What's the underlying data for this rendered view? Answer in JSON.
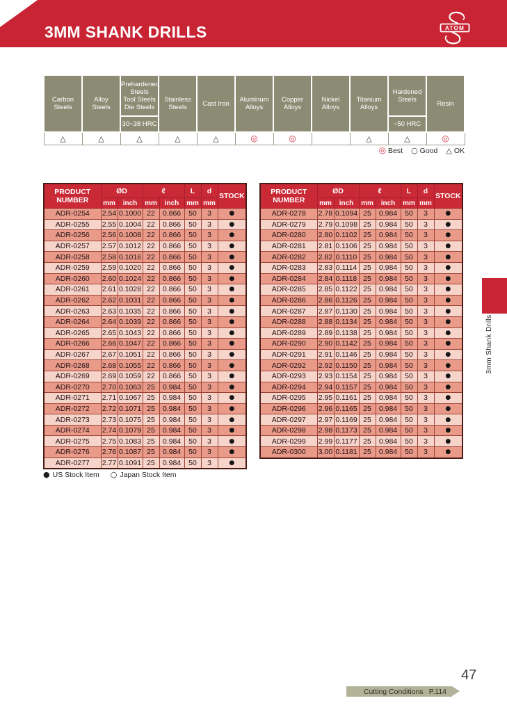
{
  "header": {
    "title": "3MM SHANK DRILLS",
    "logo_text": "ATOM"
  },
  "colors": {
    "banner_red": "#c82433",
    "table_header_red": "#ca2936",
    "header_cell_border": "#a81e2e",
    "olive": "#8c8c75",
    "arrow_olive": "#b3b399",
    "row_dark": "#e99a89",
    "row_light": "#f7d4ca",
    "row_border": "#9c4335",
    "rating_red": "#cf3246"
  },
  "materials": {
    "columns": [
      {
        "label": "Carbon\nSteels",
        "sub": "",
        "rating": "ok"
      },
      {
        "label": "Alloy\nSteels",
        "sub": "",
        "rating": "ok"
      },
      {
        "label": "Prehardened\nSteels\nTool Steels\nDie Steels",
        "sub": "30~38 HRC",
        "rating": "ok"
      },
      {
        "label": "Stainless\nSteels",
        "sub": "",
        "rating": "ok"
      },
      {
        "label": "Cast Iron",
        "sub": "",
        "rating": "ok"
      },
      {
        "label": "Aluminum\nAlloys",
        "sub": "",
        "rating": "best"
      },
      {
        "label": "Copper\nAlloys",
        "sub": "",
        "rating": "best"
      },
      {
        "label": "Nickel\nAlloys",
        "sub": "",
        "rating": "none"
      },
      {
        "label": "Titanium\nAlloys",
        "sub": "",
        "rating": "ok"
      },
      {
        "label": "Hardened\nSteels",
        "sub": "~50 HRC",
        "rating": "ok"
      },
      {
        "label": "Resin",
        "sub": "",
        "rating": "best"
      }
    ],
    "symbols": {
      "best": "◎",
      "good": "○",
      "ok": "△",
      "none": ""
    }
  },
  "rating_legend": [
    {
      "rating": "best",
      "label": "Best"
    },
    {
      "rating": "good",
      "label": "Good"
    },
    {
      "rating": "ok",
      "label": "OK"
    }
  ],
  "drill_tables": {
    "headers": {
      "product": "PRODUCT\nNUMBER",
      "diameter": "ØD",
      "flute_length": "ℓ",
      "overall_length": "L",
      "shank": "d",
      "stock": "STOCK",
      "mm": "mm",
      "inch": "inch"
    },
    "left_rows": [
      [
        "ADR-0254",
        "2.54",
        "0.1000",
        "22",
        "0.866",
        "50",
        "3",
        "●"
      ],
      [
        "ADR-0255",
        "2.55",
        "0.1004",
        "22",
        "0.866",
        "50",
        "3",
        "●"
      ],
      [
        "ADR-0256",
        "2.56",
        "0.1008",
        "22",
        "0.866",
        "50",
        "3",
        "●"
      ],
      [
        "ADR-0257",
        "2.57",
        "0.1012",
        "22",
        "0.866",
        "50",
        "3",
        "●"
      ],
      [
        "ADR-0258",
        "2.58",
        "0.1016",
        "22",
        "0.866",
        "50",
        "3",
        "●"
      ],
      [
        "ADR-0259",
        "2.59",
        "0.1020",
        "22",
        "0.866",
        "50",
        "3",
        "●"
      ],
      [
        "ADR-0260",
        "2.60",
        "0.1024",
        "22",
        "0.866",
        "50",
        "3",
        "●"
      ],
      [
        "ADR-0261",
        "2.61",
        "0.1028",
        "22",
        "0.866",
        "50",
        "3",
        "●"
      ],
      [
        "ADR-0262",
        "2.62",
        "0.1031",
        "22",
        "0.866",
        "50",
        "3",
        "●"
      ],
      [
        "ADR-0263",
        "2.63",
        "0.1035",
        "22",
        "0.866",
        "50",
        "3",
        "●"
      ],
      [
        "ADR-0264",
        "2.64",
        "0.1039",
        "22",
        "0.866",
        "50",
        "3",
        "●"
      ],
      [
        "ADR-0265",
        "2.65",
        "0.1043",
        "22",
        "0.866",
        "50",
        "3",
        "●"
      ],
      [
        "ADR-0266",
        "2.66",
        "0.1047",
        "22",
        "0.866",
        "50",
        "3",
        "●"
      ],
      [
        "ADR-0267",
        "2.67",
        "0.1051",
        "22",
        "0.866",
        "50",
        "3",
        "●"
      ],
      [
        "ADR-0268",
        "2.68",
        "0.1055",
        "22",
        "0.866",
        "50",
        "3",
        "●"
      ],
      [
        "ADR-0269",
        "2.69",
        "0.1059",
        "22",
        "0.866",
        "50",
        "3",
        "●"
      ],
      [
        "ADR-0270",
        "2.70",
        "0.1063",
        "25",
        "0.984",
        "50",
        "3",
        "●"
      ],
      [
        "ADR-0271",
        "2.71",
        "0.1067",
        "25",
        "0.984",
        "50",
        "3",
        "●"
      ],
      [
        "ADR-0272",
        "2.72",
        "0.1071",
        "25",
        "0.984",
        "50",
        "3",
        "●"
      ],
      [
        "ADR-0273",
        "2.73",
        "0.1075",
        "25",
        "0.984",
        "50",
        "3",
        "●"
      ],
      [
        "ADR-0274",
        "2.74",
        "0.1079",
        "25",
        "0.984",
        "50",
        "3",
        "●"
      ],
      [
        "ADR-0275",
        "2.75",
        "0.1083",
        "25",
        "0.984",
        "50",
        "3",
        "●"
      ],
      [
        "ADR-0276",
        "2.76",
        "0.1087",
        "25",
        "0.984",
        "50",
        "3",
        "●"
      ],
      [
        "ADR-0277",
        "2.77",
        "0.1091",
        "25",
        "0.984",
        "50",
        "3",
        "●"
      ]
    ],
    "right_rows": [
      [
        "ADR-0278",
        "2.78",
        "0.1094",
        "25",
        "0.984",
        "50",
        "3",
        "●"
      ],
      [
        "ADR-0279",
        "2.79",
        "0.1098",
        "25",
        "0.984",
        "50",
        "3",
        "●"
      ],
      [
        "ADR-0280",
        "2.80",
        "0.1102",
        "25",
        "0.984",
        "50",
        "3",
        "●"
      ],
      [
        "ADR-0281",
        "2.81",
        "0.1106",
        "25",
        "0.984",
        "50",
        "3",
        "●"
      ],
      [
        "ADR-0282",
        "2.82",
        "0.1110",
        "25",
        "0.984",
        "50",
        "3",
        "●"
      ],
      [
        "ADR-0283",
        "2.83",
        "0.1114",
        "25",
        "0.984",
        "50",
        "3",
        "●"
      ],
      [
        "ADR-0284",
        "2.84",
        "0.1118",
        "25",
        "0.984",
        "50",
        "3",
        "●"
      ],
      [
        "ADR-0285",
        "2.85",
        "0.1122",
        "25",
        "0.984",
        "50",
        "3",
        "●"
      ],
      [
        "ADR-0286",
        "2.86",
        "0.1126",
        "25",
        "0.984",
        "50",
        "3",
        "●"
      ],
      [
        "ADR-0287",
        "2.87",
        "0.1130",
        "25",
        "0.984",
        "50",
        "3",
        "●"
      ],
      [
        "ADR-0288",
        "2.88",
        "0.1134",
        "25",
        "0.984",
        "50",
        "3",
        "●"
      ],
      [
        "ADR-0289",
        "2.89",
        "0.1138",
        "25",
        "0.984",
        "50",
        "3",
        "●"
      ],
      [
        "ADR-0290",
        "2.90",
        "0.1142",
        "25",
        "0.984",
        "50",
        "3",
        "●"
      ],
      [
        "ADR-0291",
        "2.91",
        "0.1146",
        "25",
        "0.984",
        "50",
        "3",
        "●"
      ],
      [
        "ADR-0292",
        "2.92",
        "0.1150",
        "25",
        "0.984",
        "50",
        "3",
        "●"
      ],
      [
        "ADR-0293",
        "2.93",
        "0.1154",
        "25",
        "0.984",
        "50",
        "3",
        "●"
      ],
      [
        "ADR-0294",
        "2.94",
        "0.1157",
        "25",
        "0.984",
        "50",
        "3",
        "●"
      ],
      [
        "ADR-0295",
        "2.95",
        "0.1161",
        "25",
        "0.984",
        "50",
        "3",
        "●"
      ],
      [
        "ADR-0296",
        "2.96",
        "0.1165",
        "25",
        "0.984",
        "50",
        "3",
        "●"
      ],
      [
        "ADR-0297",
        "2.97",
        "0.1169",
        "25",
        "0.984",
        "50",
        "3",
        "●"
      ],
      [
        "ADR-0298",
        "2.98",
        "0.1173",
        "25",
        "0.984",
        "50",
        "3",
        "●"
      ],
      [
        "ADR-0299",
        "2.99",
        "0.1177",
        "25",
        "0.984",
        "50",
        "3",
        "●"
      ],
      [
        "ADR-0300",
        "3.00",
        "0.1181",
        "25",
        "0.984",
        "50",
        "3",
        "●"
      ]
    ]
  },
  "stock_legend": [
    {
      "symbol": "●",
      "label": "US Stock Item"
    },
    {
      "symbol": "○",
      "label": "Japan Stock Item"
    }
  ],
  "side_tab": {
    "label": "3mm Shank Drills"
  },
  "footer": {
    "banner_label": "Cutting Conditions",
    "banner_page": "P.114",
    "page_number": "47"
  }
}
